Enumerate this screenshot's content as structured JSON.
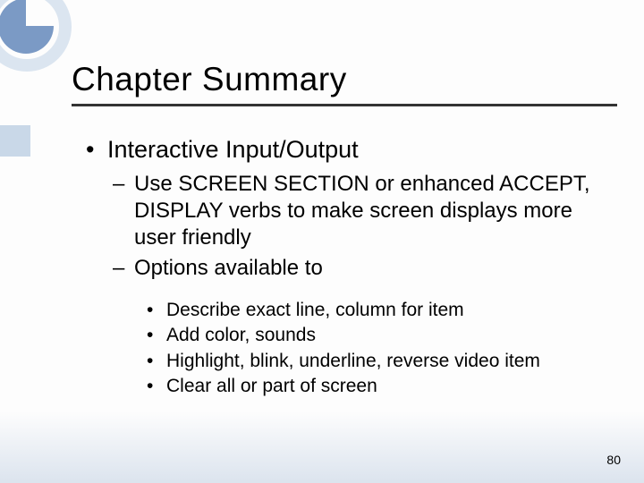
{
  "title": "Chapter Summary",
  "colors": {
    "ring_light": "#dbe5f0",
    "ring_dark": "#7b9ac5",
    "left_accent": "#c9d8e8",
    "underline": "#333333",
    "text": "#000000",
    "bottom_fade": "#9db4d1"
  },
  "bullets": {
    "lvl1": {
      "marker": "•",
      "text": "Interactive Input/Output"
    },
    "lvl2": [
      {
        "marker": "–",
        "text": "Use SCREEN SECTION or enhanced ACCEPT, DISPLAY verbs to make screen displays more user friendly"
      },
      {
        "marker": "–",
        "text": "Options available to"
      }
    ],
    "lvl3": [
      {
        "marker": "•",
        "text": "Describe exact line, column for item"
      },
      {
        "marker": "•",
        "text": "Add color, sounds"
      },
      {
        "marker": "•",
        "text": "Highlight, blink, underline, reverse video item"
      },
      {
        "marker": "•",
        "text": "Clear all or part of screen"
      }
    ]
  },
  "page_number": "80"
}
